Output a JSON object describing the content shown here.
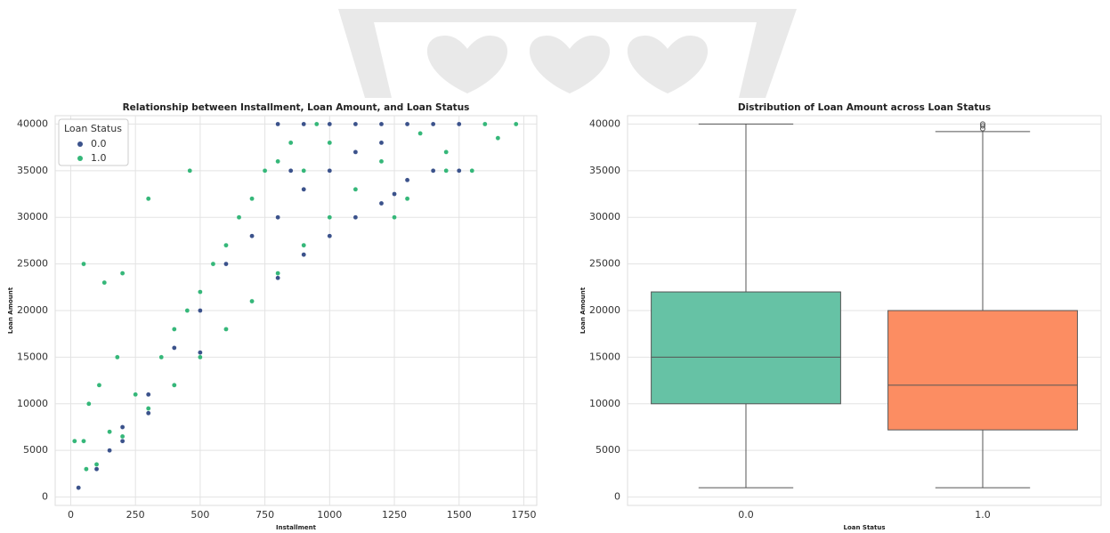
{
  "chart_data": [
    {
      "type": "scatter",
      "title": "Relationship between Installment, Loan Amount, and Loan Status",
      "x_label": "Installment",
      "y_label": "Loan Amount",
      "legend_title": "Loan Status",
      "legend": "upper left",
      "grid": true,
      "xlim": [
        -60,
        1800
      ],
      "ylim": [
        -900,
        40900
      ],
      "xticks": [
        0,
        250,
        500,
        750,
        1000,
        1250,
        1500,
        1750
      ],
      "yticks": [
        0,
        5000,
        10000,
        15000,
        20000,
        25000,
        30000,
        35000,
        40000
      ],
      "series": [
        {
          "name": "0.0",
          "color": "#3b528b",
          "x": [
            30,
            100,
            200,
            300,
            400,
            500,
            600,
            700,
            800,
            900,
            1000,
            1100,
            1200,
            1250,
            1300,
            1400,
            1500,
            800,
            900,
            1000,
            1100,
            1200,
            1300,
            1400,
            1500,
            1600,
            600,
            700,
            500,
            400,
            300,
            650,
            900,
            1000,
            1100,
            200,
            150,
            800,
            850,
            1200
          ],
          "values": [
            1000,
            3000,
            6000,
            9000,
            12000,
            15500,
            18000,
            21000,
            23500,
            26000,
            28000,
            30000,
            31500,
            32500,
            34000,
            35000,
            35000,
            40000,
            40000,
            40000,
            40000,
            40000,
            40000,
            40000,
            40000,
            40000,
            25000,
            28000,
            20000,
            16000,
            11000,
            30000,
            33000,
            35000,
            37000,
            7500,
            5000,
            30000,
            35000,
            38000
          ]
        },
        {
          "name": "1.0",
          "color": "#35b779",
          "x": [
            15,
            50,
            50,
            130,
            200,
            300,
            460,
            70,
            110,
            180,
            60,
            150,
            250,
            350,
            450,
            550,
            650,
            750,
            850,
            950,
            1720,
            1650,
            1600,
            1550,
            1450,
            1350,
            1200,
            1100,
            1000,
            900,
            800,
            700,
            600,
            500,
            400,
            300,
            200,
            100,
            400,
            500,
            600,
            700,
            800,
            900,
            1000,
            1250,
            1300,
            1450
          ],
          "values": [
            6000,
            6000,
            25000,
            23000,
            24000,
            32000,
            35000,
            10000,
            12000,
            15000,
            3000,
            7000,
            11000,
            15000,
            20000,
            25000,
            30000,
            35000,
            38000,
            40000,
            40000,
            38500,
            40000,
            35000,
            37000,
            39000,
            36000,
            33000,
            30000,
            27000,
            24000,
            21000,
            18000,
            15000,
            12000,
            9500,
            6500,
            3500,
            18000,
            22000,
            27000,
            32000,
            36000,
            35000,
            38000,
            30000,
            32000,
            35000
          ]
        }
      ]
    },
    {
      "type": "box",
      "title": "Distribution of Loan Amount across Loan Status",
      "x_label": "Loan Status",
      "y_label": "Loan Amount",
      "grid": true,
      "ylim": [
        -900,
        40900
      ],
      "yticks": [
        0,
        5000,
        10000,
        15000,
        20000,
        25000,
        30000,
        35000,
        40000
      ],
      "categories": [
        "0.0",
        "1.0"
      ],
      "boxes": [
        {
          "color": "#66c2a5",
          "whislo": 1000,
          "q1": 10000,
          "med": 15000,
          "q3": 22000,
          "whishi": 40000
        },
        {
          "color": "#fc8d62",
          "whislo": 1000,
          "q1": 7200,
          "med": 12000,
          "q3": 20000,
          "whishi": 39200,
          "fliers": [
            39500,
            39800,
            40000
          ]
        }
      ]
    }
  ]
}
